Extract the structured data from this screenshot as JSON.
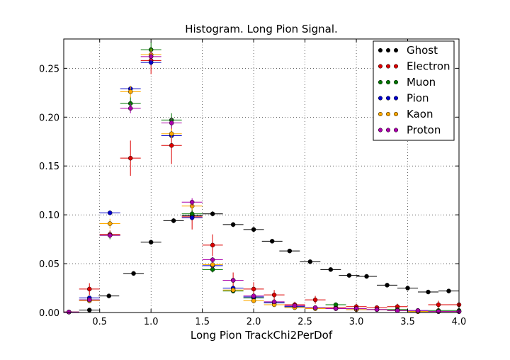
{
  "chart_data": {
    "type": "scatter",
    "title": "Histogram. Long Pion Signal.",
    "xlabel": "Long Pion TrackChi2PerDof",
    "ylabel": "",
    "xlim": [
      0.15,
      4.0
    ],
    "ylim": [
      0.0,
      0.28
    ],
    "xticks": [
      0.5,
      1.0,
      1.5,
      2.0,
      2.5,
      3.0,
      3.5,
      4.0
    ],
    "xtick_labels": [
      "0.5",
      "1.0",
      "1.5",
      "2.0",
      "2.5",
      "3.0",
      "3.5",
      "4.0"
    ],
    "yticks": [
      0.0,
      0.05,
      0.1,
      0.15,
      0.2,
      0.25
    ],
    "ytick_labels": [
      "0.00",
      "0.05",
      "0.10",
      "0.15",
      "0.20",
      "0.25"
    ],
    "grid": true,
    "legend_position": "top-right",
    "x_bin_halfwidth": 0.1,
    "series": [
      {
        "name": "Ghost",
        "color": "#000000",
        "points": [
          {
            "x": 0.4,
            "y": 0.0025,
            "err": 0.0005
          },
          {
            "x": 0.59,
            "y": 0.017,
            "err": 0.001
          },
          {
            "x": 0.83,
            "y": 0.04,
            "err": 0.0015
          },
          {
            "x": 1.0,
            "y": 0.072,
            "err": 0.002
          },
          {
            "x": 1.22,
            "y": 0.094,
            "err": 0.0025
          },
          {
            "x": 1.4,
            "y": 0.099,
            "err": 0.0025
          },
          {
            "x": 1.6,
            "y": 0.101,
            "err": 0.0025
          },
          {
            "x": 1.8,
            "y": 0.09,
            "err": 0.0025
          },
          {
            "x": 2.0,
            "y": 0.085,
            "err": 0.0025
          },
          {
            "x": 2.18,
            "y": 0.073,
            "err": 0.002
          },
          {
            "x": 2.35,
            "y": 0.063,
            "err": 0.002
          },
          {
            "x": 2.55,
            "y": 0.052,
            "err": 0.002
          },
          {
            "x": 2.75,
            "y": 0.044,
            "err": 0.0015
          },
          {
            "x": 2.93,
            "y": 0.038,
            "err": 0.0015
          },
          {
            "x": 3.1,
            "y": 0.037,
            "err": 0.0015
          },
          {
            "x": 3.3,
            "y": 0.028,
            "err": 0.0015
          },
          {
            "x": 3.5,
            "y": 0.025,
            "err": 0.0015
          },
          {
            "x": 3.7,
            "y": 0.021,
            "err": 0.0012
          },
          {
            "x": 3.9,
            "y": 0.022,
            "err": 0.0012
          }
        ]
      },
      {
        "name": "Electron",
        "color": "#dd0000",
        "points": [
          {
            "x": 0.2,
            "y": 0.0005,
            "err": 0.0005
          },
          {
            "x": 0.4,
            "y": 0.024,
            "err": 0.006
          },
          {
            "x": 0.6,
            "y": 0.08,
            "err": 0.004
          },
          {
            "x": 0.8,
            "y": 0.158,
            "err": 0.018
          },
          {
            "x": 1.0,
            "y": 0.258,
            "err": 0.014
          },
          {
            "x": 1.2,
            "y": 0.171,
            "err": 0.019
          },
          {
            "x": 1.4,
            "y": 0.098,
            "err": 0.013
          },
          {
            "x": 1.6,
            "y": 0.069,
            "err": 0.011
          },
          {
            "x": 1.8,
            "y": 0.033,
            "err": 0.008
          },
          {
            "x": 2.0,
            "y": 0.024,
            "err": 0.007
          },
          {
            "x": 2.2,
            "y": 0.018,
            "err": 0.005
          },
          {
            "x": 2.4,
            "y": 0.008,
            "err": 0.003
          },
          {
            "x": 2.6,
            "y": 0.013,
            "err": 0.004
          },
          {
            "x": 2.8,
            "y": 0.005,
            "err": 0.002
          },
          {
            "x": 3.0,
            "y": 0.006,
            "err": 0.003
          },
          {
            "x": 3.2,
            "y": 0.005,
            "err": 0.002
          },
          {
            "x": 3.4,
            "y": 0.006,
            "err": 0.003
          },
          {
            "x": 3.6,
            "y": 0.001,
            "err": 0.001
          },
          {
            "x": 3.8,
            "y": 0.008,
            "err": 0.004
          },
          {
            "x": 4.0,
            "y": 0.008,
            "err": 0.004
          }
        ]
      },
      {
        "name": "Muon",
        "color": "#007700",
        "points": [
          {
            "x": 0.2,
            "y": 0.0005,
            "err": 0.0005
          },
          {
            "x": 0.4,
            "y": 0.013,
            "err": 0.002
          },
          {
            "x": 0.6,
            "y": 0.079,
            "err": 0.004
          },
          {
            "x": 0.8,
            "y": 0.214,
            "err": 0.007
          },
          {
            "x": 1.0,
            "y": 0.269,
            "err": 0.008
          },
          {
            "x": 1.2,
            "y": 0.197,
            "err": 0.007
          },
          {
            "x": 1.4,
            "y": 0.101,
            "err": 0.005
          },
          {
            "x": 1.6,
            "y": 0.044,
            "err": 0.003
          },
          {
            "x": 1.8,
            "y": 0.022,
            "err": 0.002
          },
          {
            "x": 2.0,
            "y": 0.015,
            "err": 0.002
          },
          {
            "x": 2.2,
            "y": 0.01,
            "err": 0.0015
          },
          {
            "x": 2.4,
            "y": 0.006,
            "err": 0.001
          },
          {
            "x": 2.6,
            "y": 0.005,
            "err": 0.001
          },
          {
            "x": 2.8,
            "y": 0.008,
            "err": 0.001
          },
          {
            "x": 3.0,
            "y": 0.004,
            "err": 0.001
          },
          {
            "x": 3.2,
            "y": 0.003,
            "err": 0.001
          },
          {
            "x": 3.4,
            "y": 0.003,
            "err": 0.001
          },
          {
            "x": 3.6,
            "y": 0.001,
            "err": 0.0005
          },
          {
            "x": 3.8,
            "y": 0.002,
            "err": 0.0005
          },
          {
            "x": 4.0,
            "y": 0.002,
            "err": 0.0005
          }
        ]
      },
      {
        "name": "Pion",
        "color": "#0000cc",
        "points": [
          {
            "x": 0.2,
            "y": 0.0005,
            "err": 0.0003
          },
          {
            "x": 0.4,
            "y": 0.015,
            "err": 0.001
          },
          {
            "x": 0.6,
            "y": 0.102,
            "err": 0.002
          },
          {
            "x": 0.8,
            "y": 0.229,
            "err": 0.003
          },
          {
            "x": 1.0,
            "y": 0.256,
            "err": 0.003
          },
          {
            "x": 1.2,
            "y": 0.181,
            "err": 0.003
          },
          {
            "x": 1.4,
            "y": 0.097,
            "err": 0.002
          },
          {
            "x": 1.6,
            "y": 0.048,
            "err": 0.0015
          },
          {
            "x": 1.8,
            "y": 0.025,
            "err": 0.001
          },
          {
            "x": 2.0,
            "y": 0.016,
            "err": 0.001
          },
          {
            "x": 2.2,
            "y": 0.01,
            "err": 0.0008
          },
          {
            "x": 2.4,
            "y": 0.006,
            "err": 0.0006
          },
          {
            "x": 2.6,
            "y": 0.004,
            "err": 0.0005
          },
          {
            "x": 2.8,
            "y": 0.004,
            "err": 0.0005
          },
          {
            "x": 3.0,
            "y": 0.003,
            "err": 0.0004
          },
          {
            "x": 3.2,
            "y": 0.003,
            "err": 0.0004
          },
          {
            "x": 3.4,
            "y": 0.002,
            "err": 0.0003
          },
          {
            "x": 3.6,
            "y": 0.002,
            "err": 0.0003
          },
          {
            "x": 3.8,
            "y": 0.001,
            "err": 0.0003
          },
          {
            "x": 4.0,
            "y": 0.001,
            "err": 0.0003
          }
        ]
      },
      {
        "name": "Kaon",
        "color": "#ffaa00",
        "points": [
          {
            "x": 0.2,
            "y": 0.0005,
            "err": 0.0003
          },
          {
            "x": 0.4,
            "y": 0.012,
            "err": 0.002
          },
          {
            "x": 0.6,
            "y": 0.091,
            "err": 0.005
          },
          {
            "x": 0.8,
            "y": 0.226,
            "err": 0.006
          },
          {
            "x": 1.0,
            "y": 0.264,
            "err": 0.006
          },
          {
            "x": 1.2,
            "y": 0.183,
            "err": 0.005
          },
          {
            "x": 1.4,
            "y": 0.109,
            "err": 0.004
          },
          {
            "x": 1.6,
            "y": 0.049,
            "err": 0.003
          },
          {
            "x": 1.8,
            "y": 0.023,
            "err": 0.002
          },
          {
            "x": 2.0,
            "y": 0.012,
            "err": 0.0015
          },
          {
            "x": 2.2,
            "y": 0.008,
            "err": 0.001
          },
          {
            "x": 2.4,
            "y": 0.005,
            "err": 0.001
          },
          {
            "x": 2.6,
            "y": 0.004,
            "err": 0.0008
          },
          {
            "x": 2.8,
            "y": 0.004,
            "err": 0.0008
          },
          {
            "x": 3.0,
            "y": 0.003,
            "err": 0.0006
          },
          {
            "x": 3.2,
            "y": 0.003,
            "err": 0.0006
          },
          {
            "x": 3.4,
            "y": 0.002,
            "err": 0.0005
          },
          {
            "x": 3.6,
            "y": 0.001,
            "err": 0.0004
          },
          {
            "x": 3.8,
            "y": 0.001,
            "err": 0.0004
          },
          {
            "x": 4.0,
            "y": 0.001,
            "err": 0.0004
          }
        ]
      },
      {
        "name": "Proton",
        "color": "#aa00aa",
        "points": [
          {
            "x": 0.2,
            "y": 0.0005,
            "err": 0.0003
          },
          {
            "x": 0.4,
            "y": 0.013,
            "err": 0.002
          },
          {
            "x": 0.6,
            "y": 0.079,
            "err": 0.003
          },
          {
            "x": 0.8,
            "y": 0.209,
            "err": 0.005
          },
          {
            "x": 1.0,
            "y": 0.262,
            "err": 0.005
          },
          {
            "x": 1.2,
            "y": 0.194,
            "err": 0.005
          },
          {
            "x": 1.4,
            "y": 0.113,
            "err": 0.004
          },
          {
            "x": 1.6,
            "y": 0.054,
            "err": 0.003
          },
          {
            "x": 1.8,
            "y": 0.033,
            "err": 0.002
          },
          {
            "x": 2.0,
            "y": 0.017,
            "err": 0.0015
          },
          {
            "x": 2.2,
            "y": 0.011,
            "err": 0.001
          },
          {
            "x": 2.4,
            "y": 0.007,
            "err": 0.001
          },
          {
            "x": 2.6,
            "y": 0.005,
            "err": 0.0008
          },
          {
            "x": 2.8,
            "y": 0.004,
            "err": 0.0008
          },
          {
            "x": 3.0,
            "y": 0.004,
            "err": 0.0006
          },
          {
            "x": 3.2,
            "y": 0.003,
            "err": 0.0006
          },
          {
            "x": 3.4,
            "y": 0.002,
            "err": 0.0005
          },
          {
            "x": 3.6,
            "y": 0.002,
            "err": 0.0004
          },
          {
            "x": 3.8,
            "y": 0.001,
            "err": 0.0004
          },
          {
            "x": 4.0,
            "y": 0.001,
            "err": 0.0004
          }
        ]
      }
    ]
  }
}
